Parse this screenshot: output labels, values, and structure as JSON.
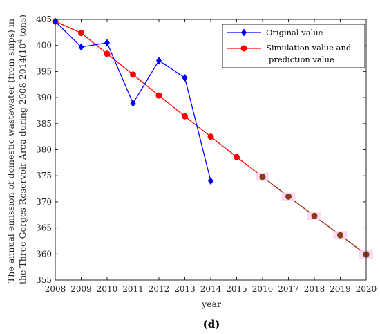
{
  "chart_data": {
    "type": "line",
    "ylabel_line1": "The annual emission of domestic wastewater (from ships) in",
    "ylabel_line2_pre": "the Three Gorges Reservoir Area during 2008-2014(10",
    "ylabel_sup": "4",
    "ylabel_line2_post": " tons)",
    "xlabel": "year",
    "panel_label": "(d)",
    "xlim": [
      2008,
      2020
    ],
    "ylim": [
      355,
      405
    ],
    "xticks": [
      2008,
      2009,
      2010,
      2011,
      2012,
      2013,
      2014,
      2015,
      2016,
      2017,
      2018,
      2019,
      2020
    ],
    "yticks": [
      355,
      360,
      365,
      370,
      375,
      380,
      385,
      390,
      395,
      400,
      405
    ],
    "grid": false,
    "legend_position": "top-right",
    "series": [
      {
        "name": "Original value",
        "color": "#0000ff",
        "marker": "diamond",
        "x": [
          2008,
          2009,
          2010,
          2011,
          2012,
          2013,
          2014
        ],
        "y": [
          404.6,
          399.7,
          400.5,
          388.9,
          397.1,
          393.8,
          374.0
        ]
      },
      {
        "name": "Simulation value and prediction value",
        "legend_line1": "Simulation value and",
        "legend_line2": "prediction value",
        "color": "#ff0000",
        "prediction_color": "#8b3a1a",
        "marker": "circle",
        "x": [
          2008,
          2009,
          2010,
          2011,
          2012,
          2013,
          2014,
          2015,
          2016,
          2017,
          2018,
          2019,
          2020
        ],
        "y": [
          404.6,
          402.4,
          398.4,
          394.4,
          390.4,
          386.4,
          382.5,
          378.6,
          374.8,
          371.0,
          367.3,
          363.6,
          359.9
        ]
      }
    ]
  }
}
